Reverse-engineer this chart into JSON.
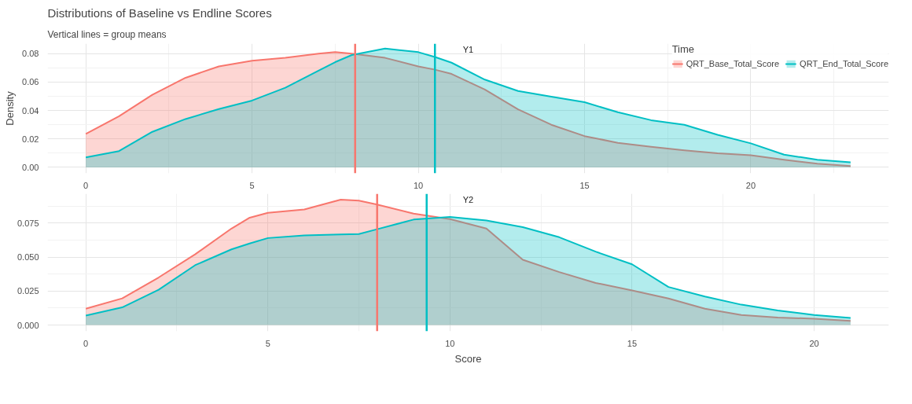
{
  "chart_data": [
    {
      "type": "area",
      "title": "Distributions of Baseline vs Endline Scores",
      "subtitle": "Vertical lines = group means",
      "legend_title": "Time",
      "legend": "top right",
      "ylabel": "Density",
      "annotations": [
        "Y1"
      ],
      "grid": true,
      "x": [
        0,
        1,
        2,
        3,
        4,
        5,
        6,
        7,
        7.5,
        8,
        9,
        10,
        10.5,
        11,
        12,
        13,
        14,
        15,
        16,
        17,
        18,
        19,
        20,
        21,
        22,
        23
      ],
      "xlim": [
        -1.15,
        24.15
      ],
      "xticks": [
        0,
        5,
        10,
        15,
        20
      ],
      "ylim": [
        -0.00415,
        0.087
      ],
      "yticks": [
        {
          "value": 0,
          "label": "0.00"
        },
        {
          "value": 0.02,
          "label": "0.02"
        },
        {
          "value": 0.04,
          "label": "0.04"
        },
        {
          "value": 0.06,
          "label": "0.06"
        },
        {
          "value": 0.08,
          "label": "0.08"
        }
      ],
      "series": [
        {
          "name": "QRT_Base_Total_Score",
          "color": "#f8766d",
          "values": [
            0.0235,
            0.036,
            0.051,
            0.063,
            0.071,
            0.075,
            0.077,
            0.08,
            0.081,
            0.08,
            0.077,
            0.071,
            0.0687,
            0.0657,
            0.0547,
            0.0408,
            0.03,
            0.022,
            0.0173,
            0.0145,
            0.012,
            0.01,
            0.0086,
            0.0054,
            0.0026,
            0.001
          ]
        },
        {
          "name": "QRT_End_Total_Score",
          "color": "#00bfc4",
          "values": [
            0.007,
            0.0115,
            0.025,
            0.034,
            0.041,
            0.047,
            0.056,
            0.068,
            0.074,
            0.079,
            0.0835,
            0.081,
            0.0776,
            0.0736,
            0.0617,
            0.0537,
            0.0497,
            0.0458,
            0.0388,
            0.0332,
            0.03,
            0.0229,
            0.0169,
            0.009,
            0.0054,
            0.0036
          ]
        }
      ],
      "ref_lines": [
        {
          "axis": "x",
          "value": 8.1,
          "color": "#f8766d"
        },
        {
          "axis": "x",
          "value": 10.5,
          "color": "#00bfc4"
        }
      ]
    },
    {
      "type": "area",
      "xlabel": "Score",
      "annotations": [
        "Y2"
      ],
      "grid": true,
      "x": [
        0,
        1,
        2,
        3,
        4,
        4.5,
        5,
        6,
        7,
        7.5,
        8,
        9,
        10,
        11,
        12,
        13,
        14,
        15,
        16,
        17,
        18,
        19,
        20,
        21
      ],
      "xlim": [
        -1.05,
        22.05
      ],
      "xticks": [
        0,
        5,
        10,
        15,
        20
      ],
      "ylim": [
        -0.0046,
        0.0966
      ],
      "yticks": [
        {
          "value": 0,
          "label": "0.000"
        },
        {
          "value": 0.025,
          "label": "0.025"
        },
        {
          "value": 0.05,
          "label": "0.050"
        },
        {
          "value": 0.075,
          "label": "0.075"
        }
      ],
      "series": [
        {
          "color": "#f8766d",
          "values": [
            0.012,
            0.0196,
            0.035,
            0.052,
            0.071,
            0.079,
            0.0826,
            0.085,
            0.0923,
            0.0915,
            0.0886,
            0.082,
            0.078,
            0.071,
            0.048,
            0.039,
            0.031,
            0.0255,
            0.0195,
            0.012,
            0.0074,
            0.0055,
            0.0047,
            0.003
          ]
        },
        {
          "color": "#00bfc4",
          "values": [
            0.007,
            0.013,
            0.026,
            0.044,
            0.0557,
            0.06,
            0.064,
            0.066,
            0.0667,
            0.067,
            0.0705,
            0.0776,
            0.0795,
            0.077,
            0.072,
            0.0646,
            0.054,
            0.0447,
            0.028,
            0.021,
            0.015,
            0.0107,
            0.0074,
            0.0053
          ]
        }
      ],
      "ref_lines": [
        {
          "axis": "x",
          "value": 8.0,
          "color": "#f8766d"
        },
        {
          "axis": "x",
          "value": 9.36,
          "color": "#00bfc4"
        }
      ]
    }
  ]
}
